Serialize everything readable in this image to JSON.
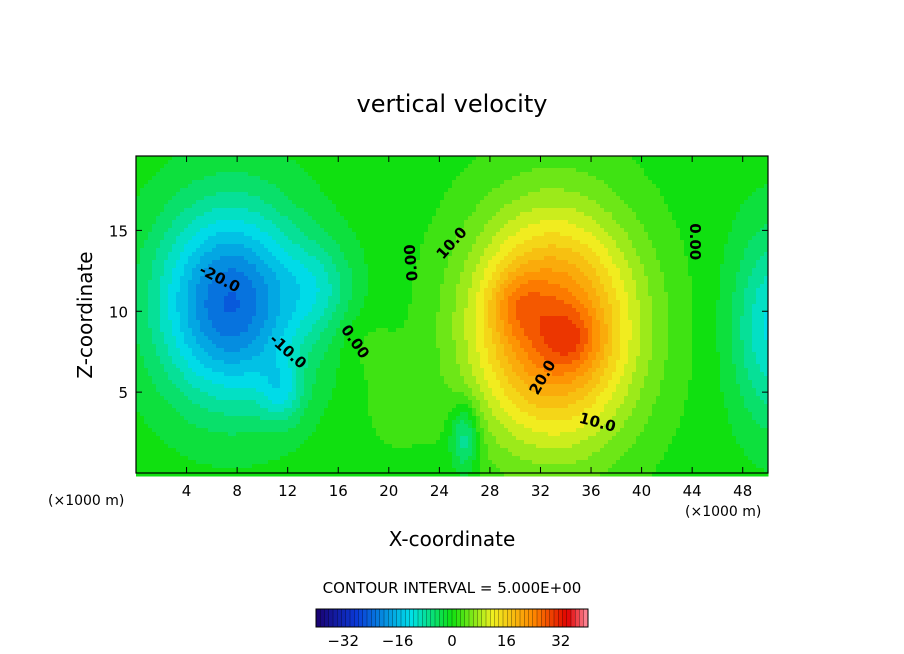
{
  "chart_data": {
    "type": "heatmap",
    "title": "vertical velocity",
    "xlabel": "X-coordinate",
    "ylabel": "Z-coordinate",
    "x_unit_note": "(×1000 m)",
    "x_unit_note_right": "(×1000 m)",
    "xlim": [
      0,
      50
    ],
    "ylim": [
      0,
      19.6
    ],
    "x_ticks": [
      4,
      8,
      12,
      16,
      20,
      24,
      28,
      32,
      36,
      40,
      44,
      48
    ],
    "y_ticks": [
      5,
      10,
      15
    ],
    "contour_interval_label": "CONTOUR INTERVAL = 5.000E+00",
    "contour_interval": 5.0,
    "contour_labels": [
      {
        "text": "-20.0",
        "x": 6.6,
        "y": 12.0,
        "rot": 27
      },
      {
        "text": "-10.0",
        "x": 12.0,
        "y": 7.5,
        "rot": 42
      },
      {
        "text": "0.00",
        "x": 17.3,
        "y": 8.1,
        "rot": 55
      },
      {
        "text": "0.00",
        "x": 21.8,
        "y": 13.0,
        "rot": -95
      },
      {
        "text": "10.0",
        "x": 25.0,
        "y": 14.2,
        "rot": -48
      },
      {
        "text": "20.0",
        "x": 32.2,
        "y": 5.9,
        "rot": -60
      },
      {
        "text": "10.0",
        "x": 36.5,
        "y": 3.1,
        "rot": 15
      },
      {
        "text": "0.00",
        "x": 44.2,
        "y": 14.3,
        "rot": 90
      }
    ],
    "field_features": [
      {
        "amp": -24,
        "x": 7.5,
        "z": 10.5,
        "sx": 4.0,
        "sz": 4.2
      },
      {
        "amp": -6,
        "x": 14.5,
        "z": 11.5,
        "sx": 2.0,
        "sz": 2.0
      },
      {
        "amp": -7,
        "x": 11.5,
        "z": 5.0,
        "sx": 1.2,
        "sz": 1.4
      },
      {
        "amp": -10,
        "x": 26.0,
        "z": 2.2,
        "sx": 0.8,
        "sz": 1.5
      },
      {
        "amp": 3,
        "x": 20.5,
        "z": 4.5,
        "sx": 1.6,
        "sz": 2.0
      },
      {
        "amp": 2,
        "x": 18.0,
        "z": 8.0,
        "sx": 1.5,
        "sz": 1.5
      },
      {
        "amp": 27,
        "x": 33.0,
        "z": 9.0,
        "sx": 4.6,
        "sz": 5.0
      },
      {
        "amp": 5,
        "x": 30.0,
        "z": 10.5,
        "sx": 1.5,
        "sz": 1.5
      },
      {
        "amp": 5,
        "x": 34.5,
        "z": 8.2,
        "sx": 1.6,
        "sz": 1.3
      },
      {
        "amp": -12,
        "x": 50.5,
        "z": 9.0,
        "sx": 2.3,
        "sz": 4.2
      }
    ],
    "colorbar": {
      "min": -40,
      "max": 40,
      "tick_values": [
        -32,
        -16,
        0,
        16,
        32
      ],
      "tick_labels": [
        "−32",
        "−16",
        "0",
        "16",
        "32"
      ]
    },
    "colors": {
      "low": "#1a0070",
      "blue": "#0a3ad8",
      "cyan": "#00e0e8",
      "green": "#10e010",
      "yellow": "#f0f020",
      "orange": "#ff8800",
      "red": "#e00000",
      "high": "#ff8fa0"
    }
  }
}
